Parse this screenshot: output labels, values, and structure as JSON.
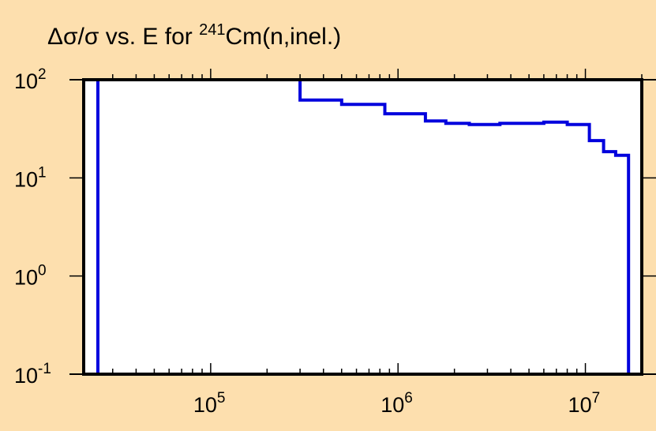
{
  "chart_data": {
    "type": "line",
    "title": {
      "prefix": "Δσ/σ vs. E for ",
      "superscript": "241",
      "suffix": "Cm(n,inel.)"
    },
    "xlabel": "",
    "ylabel": "",
    "x_scale": "log",
    "y_scale": "log",
    "xlim": [
      21000,
      20000000
    ],
    "ylim": [
      0.1,
      100
    ],
    "x_tick_labels": [
      {
        "value": 100000,
        "base": "10",
        "exp": "5"
      },
      {
        "value": 1000000,
        "base": "10",
        "exp": "6"
      },
      {
        "value": 10000000,
        "base": "10",
        "exp": "7"
      }
    ],
    "y_tick_labels": [
      {
        "value": 100,
        "base": "10",
        "exp": "2"
      },
      {
        "value": 10,
        "base": "10",
        "exp": "1"
      },
      {
        "value": 1,
        "base": "10",
        "exp": "0"
      },
      {
        "value": 0.1,
        "base": "10",
        "exp": "-1"
      }
    ],
    "grid": false,
    "series": [
      {
        "color": "#0000dd",
        "step": true,
        "x": [
          25000,
          300000,
          500000,
          850000,
          1400000,
          1800000,
          2400000,
          3500000,
          6000000,
          8000000,
          10500000,
          12500000,
          14500000,
          17000000
        ],
        "y": [
          100,
          62,
          56,
          45,
          38,
          36,
          35,
          36,
          37,
          35,
          24,
          18.5,
          17,
          16
        ]
      }
    ]
  },
  "colors": {
    "background": "#fddfae",
    "plot_area": "#ffffff",
    "axis": "#000000",
    "series": "#0000dd"
  }
}
